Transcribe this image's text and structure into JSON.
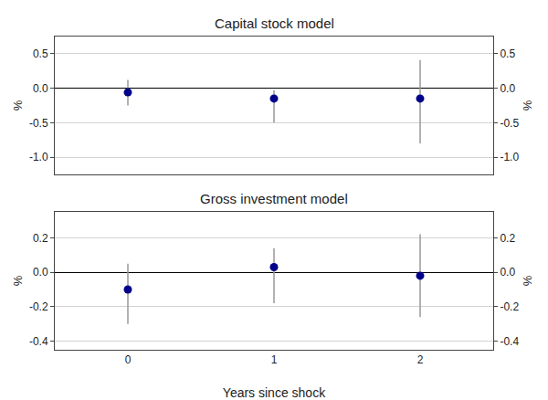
{
  "chart_data": [
    {
      "type": "scatter",
      "title": "Capital stock model",
      "x": [
        0,
        1,
        2
      ],
      "values": [
        -0.06,
        -0.15,
        -0.15
      ],
      "yerr_lo": [
        0.19,
        0.35,
        0.65
      ],
      "yerr_hi": [
        0.18,
        0.12,
        0.56
      ],
      "color": "#00008B",
      "xlim": [
        -0.5,
        2.5
      ],
      "ylim": [
        -1.25,
        0.75
      ],
      "yticks": [
        {
          "value": -1.0,
          "label": "-1.0"
        },
        -0.5,
        {
          "value": 0.0,
          "label": "0.0"
        },
        0.5
      ],
      "y2lim": [
        -1.25,
        0.75
      ],
      "y2ticks": [
        {
          "value": -1.0,
          "label": "-1.0"
        },
        -0.5,
        {
          "value": 0.0,
          "label": "0.0"
        },
        0.5
      ],
      "ylabel": "%",
      "y2label": "%",
      "grid": true,
      "tick_labels": "y"
    },
    {
      "type": "scatter",
      "title": "Gross investment model",
      "xlabel": "Years since shock",
      "x": [
        0,
        1,
        2
      ],
      "values": [
        -0.1,
        0.03,
        -0.02
      ],
      "yerr_lo": [
        0.2,
        0.21,
        0.24
      ],
      "yerr_hi": [
        0.15,
        0.11,
        0.24
      ],
      "color": "#00008B",
      "xlim": [
        -0.5,
        2.5
      ],
      "xticks": [
        0,
        1,
        2
      ],
      "ylim": [
        -0.45,
        0.35
      ],
      "yticks": [
        -0.4,
        -0.2,
        {
          "value": 0.0,
          "label": "0.0"
        },
        0.2
      ],
      "y2lim": [
        -0.45,
        0.35
      ],
      "y2ticks": [
        -0.4,
        -0.2,
        {
          "value": 0.0,
          "label": "0.0"
        },
        0.2
      ],
      "ylabel": "%",
      "y2label": "%",
      "grid": true
    }
  ]
}
